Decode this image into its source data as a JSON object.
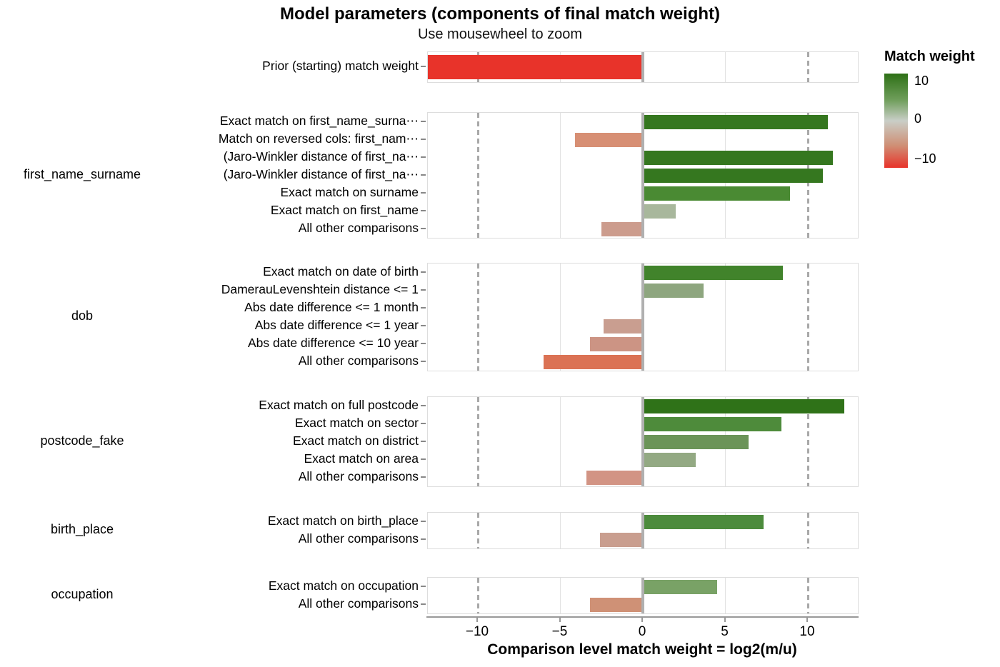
{
  "title": "Model parameters (components of final match weight)",
  "subtitle": "Use mousewheel to zoom",
  "x_axis": {
    "title": "Comparison level match weight = log2(m/u)",
    "ticks": [
      -10,
      -5,
      0,
      5,
      10
    ],
    "tick_labels": [
      "−10",
      "−5",
      "0",
      "5",
      "10"
    ],
    "domain": [
      -13.0,
      13.0
    ],
    "dashed_reference_lines": [
      -10,
      10
    ]
  },
  "legend": {
    "title": "Match weight",
    "tick_labels": [
      "10",
      "0",
      "−10"
    ],
    "top_color": "#2e7016",
    "mid_color": "#c9cec7",
    "bottom_color": "#e8332a"
  },
  "chart_data": {
    "type": "bar",
    "orientation": "horizontal",
    "xlabel": "Comparison level match weight = log2(m/u)",
    "xlim": [
      -13,
      13
    ],
    "grid": true,
    "legend_position": "right",
    "panels": [
      {
        "category": "",
        "rows": [
          {
            "label": "Prior (starting) match weight",
            "value": -13.1,
            "color": "#e8332a"
          }
        ]
      },
      {
        "category": "first_name_surname",
        "rows": [
          {
            "label": "Exact match on first_name_surna⋯",
            "value": 11.2,
            "color": "#35771f"
          },
          {
            "label": "Match on reversed cols: first_nam⋯",
            "value": -4.1,
            "color": "#d78f74"
          },
          {
            "label": "(Jaro-Winkler distance of first_na⋯",
            "value": 11.5,
            "color": "#35771f"
          },
          {
            "label": "(Jaro-Winkler distance of first_na⋯",
            "value": 10.9,
            "color": "#35771f"
          },
          {
            "label": "Exact match on surname",
            "value": 8.9,
            "color": "#4a8a33"
          },
          {
            "label": "Exact match on first_name",
            "value": 2.0,
            "color": "#a8b79c"
          },
          {
            "label": "All other comparisons",
            "value": -2.5,
            "color": "#cc9c8d"
          }
        ]
      },
      {
        "category": "dob",
        "rows": [
          {
            "label": "Exact match on date of birth",
            "value": 8.5,
            "color": "#41832b"
          },
          {
            "label": "DamerauLevenshtein distance <= 1",
            "value": 3.7,
            "color": "#8ea67f"
          },
          {
            "label": "Abs date difference <= 1 month",
            "value": 0,
            "color": null
          },
          {
            "label": "Abs date difference <= 1 year",
            "value": -2.4,
            "color": "#c99e90"
          },
          {
            "label": "Abs date difference <= 10 year",
            "value": -3.2,
            "color": "#cc9484"
          },
          {
            "label": "All other comparisons",
            "value": -6.0,
            "color": "#db7254"
          }
        ]
      },
      {
        "category": "postcode_fake",
        "rows": [
          {
            "label": "Exact match on full postcode",
            "value": 12.2,
            "color": "#2f7218"
          },
          {
            "label": "Exact match on sector",
            "value": 8.4,
            "color": "#4e8b3b"
          },
          {
            "label": "Exact match on district",
            "value": 6.4,
            "color": "#6b9458"
          },
          {
            "label": "Exact match on area",
            "value": 3.2,
            "color": "#93a983"
          },
          {
            "label": "All other comparisons",
            "value": -3.4,
            "color": "#d29484"
          }
        ]
      },
      {
        "category": "birth_place",
        "rows": [
          {
            "label": "Exact match on birth_place",
            "value": 7.3,
            "color": "#4c8b3c"
          },
          {
            "label": "All other comparisons",
            "value": -2.6,
            "color": "#c99e8f"
          }
        ]
      },
      {
        "category": "occupation",
        "rows": [
          {
            "label": "Exact match on occupation",
            "value": 4.5,
            "color": "#79a266"
          },
          {
            "label": "All other comparisons",
            "value": -3.2,
            "color": "#cf9176"
          }
        ]
      }
    ]
  }
}
